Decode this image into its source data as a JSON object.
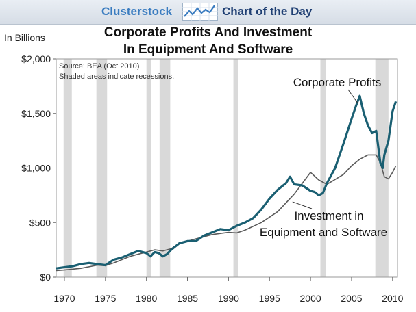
{
  "header": {
    "brand": "Clusterstock",
    "tagline": "Chart of the Day",
    "logo_icon": "trend-line-chart-icon"
  },
  "colors": {
    "corporate_profits": "#1a5f72",
    "investment": "#5a5a5a",
    "recession_shade": "#d9d9d9",
    "brand_blue": "#3a7cc0",
    "tagline_navy": "#1f3f73"
  },
  "chart_data": {
    "type": "line",
    "title": "Corporate Profits And Investment In Equipment And Software",
    "title_lines": [
      "Corporate Profits And Investment",
      "In Equipment And Software"
    ],
    "ylabel": "In Billions",
    "ylim": [
      0,
      2000
    ],
    "xlim": [
      1969,
      2010.6
    ],
    "yticks": [
      0,
      500,
      1000,
      1500,
      2000
    ],
    "ytick_labels": [
      "$0",
      "$500",
      "$1,000",
      "$1,500",
      "$2,000"
    ],
    "xticks": [
      1970,
      1975,
      1980,
      1985,
      1990,
      1995,
      2000,
      2005,
      2010
    ],
    "xtick_labels": [
      "1970",
      "1975",
      "1980",
      "1985",
      "1990",
      "1995",
      "2000",
      "2005",
      "2010"
    ],
    "grid": false,
    "notes": [
      "Source: BEA (Oct 2010)",
      "Shaded areas indicate recessions."
    ],
    "recessions": [
      [
        1969.9,
        1970.9
      ],
      [
        1973.9,
        1975.2
      ],
      [
        1980.0,
        1980.6
      ],
      [
        1981.6,
        1982.9
      ],
      [
        1990.6,
        1991.2
      ],
      [
        2001.2,
        2001.9
      ],
      [
        2007.9,
        2009.5
      ]
    ],
    "series": [
      {
        "name": "Corporate Profits",
        "label_lines": [
          "Corporate Profits"
        ],
        "x": [
          1969.0,
          1970.0,
          1971.0,
          1972.0,
          1973.0,
          1974.0,
          1975.0,
          1976.0,
          1977.0,
          1978.0,
          1979.0,
          1980.0,
          1980.5,
          1981.0,
          1981.5,
          1982.0,
          1982.5,
          1983.0,
          1984.0,
          1985.0,
          1986.0,
          1987.0,
          1988.0,
          1989.0,
          1990.0,
          1991.0,
          1992.0,
          1993.0,
          1994.0,
          1995.0,
          1996.0,
          1997.0,
          1997.5,
          1998.0,
          1999.0,
          2000.0,
          2000.5,
          2001.0,
          2001.5,
          2002.0,
          2003.0,
          2004.0,
          2005.0,
          2005.5,
          2006.0,
          2006.5,
          2007.0,
          2007.5,
          2008.0,
          2008.5,
          2008.8,
          2009.0,
          2009.5,
          2010.0,
          2010.4
        ],
        "values": [
          80,
          90,
          100,
          120,
          130,
          120,
          110,
          160,
          180,
          210,
          240,
          220,
          190,
          230,
          220,
          190,
          210,
          250,
          310,
          330,
          330,
          380,
          410,
          440,
          430,
          470,
          500,
          540,
          620,
          720,
          800,
          860,
          920,
          850,
          840,
          790,
          780,
          750,
          770,
          860,
          1000,
          1220,
          1450,
          1560,
          1660,
          1500,
          1390,
          1320,
          1340,
          1050,
          1000,
          1120,
          1250,
          1520,
          1610
        ]
      },
      {
        "name": "Investment in Equipment and Software",
        "label_lines": [
          "Investment in",
          "Equipment and Software"
        ],
        "x": [
          1969.0,
          1970.0,
          1972.0,
          1974.0,
          1975.0,
          1976.0,
          1978.0,
          1980.0,
          1981.0,
          1982.0,
          1983.0,
          1984.0,
          1986.0,
          1988.0,
          1990.0,
          1991.0,
          1992.0,
          1994.0,
          1996.0,
          1998.0,
          2000.0,
          2001.0,
          2002.0,
          2004.0,
          2005.0,
          2006.0,
          2007.0,
          2008.0,
          2008.5,
          2009.0,
          2009.5,
          2010.0,
          2010.4
        ],
        "values": [
          60,
          65,
          80,
          110,
          105,
          130,
          190,
          230,
          250,
          240,
          260,
          310,
          350,
          390,
          410,
          405,
          430,
          500,
          600,
          760,
          960,
          890,
          850,
          940,
          1020,
          1080,
          1120,
          1120,
          1050,
          920,
          900,
          960,
          1020
        ]
      }
    ]
  }
}
